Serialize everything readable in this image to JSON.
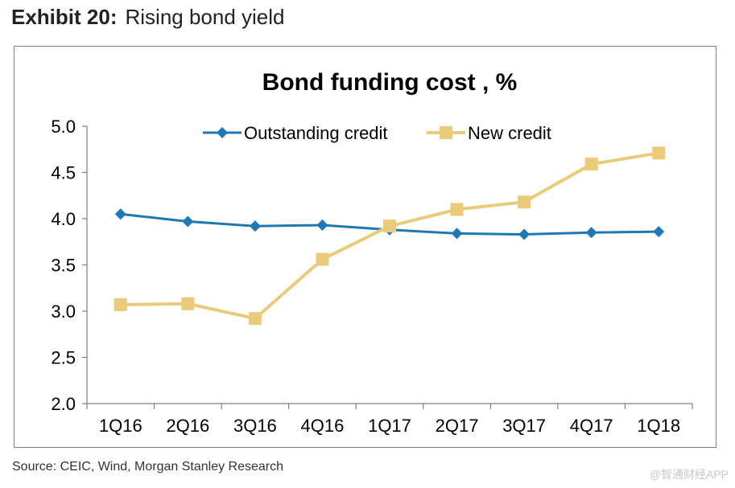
{
  "header": {
    "exhibit_label": "Exhibit 20:",
    "exhibit_title": "Rising bond yield"
  },
  "footer": {
    "source": "Source: CEIC, Wind, Morgan Stanley Research",
    "watermark": "@智通财经APP"
  },
  "colors": {
    "outstanding": "#1F78B4",
    "new": "#EACB7A",
    "axis": "#808080",
    "frame": "#7f7f7f"
  },
  "chart_data": {
    "type": "line",
    "title": "Bond funding cost , %",
    "xlabel": "",
    "ylabel": "",
    "categories": [
      "1Q16",
      "2Q16",
      "3Q16",
      "4Q16",
      "1Q17",
      "2Q17",
      "3Q17",
      "4Q17",
      "1Q18"
    ],
    "ylim": [
      2.0,
      5.0
    ],
    "yticks": [
      "2.0",
      "2.5",
      "3.0",
      "3.5",
      "4.0",
      "4.5",
      "5.0"
    ],
    "grid": false,
    "legend_position": "top",
    "series": [
      {
        "name": "Outstanding credit",
        "marker": "diamond",
        "values": [
          4.05,
          3.97,
          3.92,
          3.93,
          3.88,
          3.84,
          3.83,
          3.85,
          3.86
        ]
      },
      {
        "name": "New credit",
        "marker": "square",
        "values": [
          3.07,
          3.08,
          2.92,
          3.56,
          3.92,
          4.1,
          4.18,
          4.59,
          4.71
        ]
      }
    ]
  }
}
